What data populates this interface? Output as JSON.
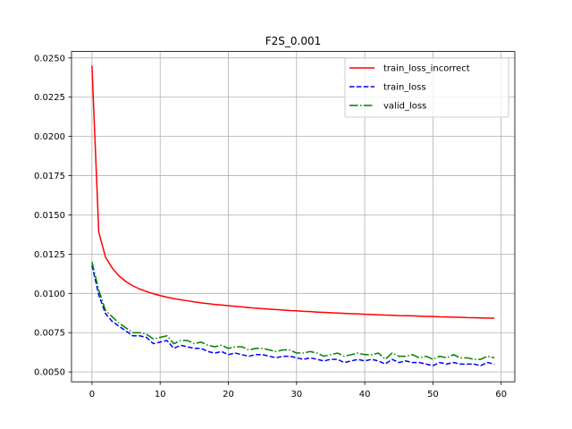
{
  "chart_data": {
    "type": "line",
    "title": "F2S_0.001",
    "xlabel": "",
    "ylabel": "",
    "xlim": [
      -3,
      62
    ],
    "ylim": [
      0.00437,
      0.02541
    ],
    "x_ticks": [
      0,
      10,
      20,
      30,
      40,
      50,
      60
    ],
    "y_ticks": [
      0.005,
      0.0075,
      0.01,
      0.0125,
      0.015,
      0.0175,
      0.02,
      0.0225,
      0.025
    ],
    "y_tick_labels": [
      "0.0050",
      "0.0075",
      "0.0100",
      "0.0125",
      "0.0150",
      "0.0175",
      "0.0200",
      "0.0225",
      "0.0250"
    ],
    "grid": true,
    "legend_position": "top-right",
    "x": [
      0,
      1,
      2,
      3,
      4,
      5,
      6,
      7,
      8,
      9,
      10,
      11,
      12,
      13,
      14,
      15,
      16,
      17,
      18,
      19,
      20,
      21,
      22,
      23,
      24,
      25,
      26,
      27,
      28,
      29,
      30,
      31,
      32,
      33,
      34,
      35,
      36,
      37,
      38,
      39,
      40,
      41,
      42,
      43,
      44,
      45,
      46,
      47,
      48,
      49,
      50,
      51,
      52,
      53,
      54,
      55,
      56,
      57,
      58,
      59
    ],
    "series": [
      {
        "name": "train_loss_incorrect",
        "color": "#ff0000",
        "dash": "solid",
        "values": [
          0.0245,
          0.0139,
          0.0123,
          0.0116,
          0.0111,
          0.01075,
          0.01048,
          0.01028,
          0.01012,
          0.00998,
          0.00986,
          0.00976,
          0.00967,
          0.0096,
          0.00953,
          0.00946,
          0.0094,
          0.00935,
          0.0093,
          0.00926,
          0.00922,
          0.00918,
          0.00914,
          0.0091,
          0.00906,
          0.00903,
          0.009,
          0.00897,
          0.00894,
          0.00891,
          0.00889,
          0.00886,
          0.00884,
          0.00881,
          0.00879,
          0.00877,
          0.00875,
          0.00873,
          0.00871,
          0.00869,
          0.00867,
          0.00866,
          0.00864,
          0.00862,
          0.00861,
          0.00859,
          0.00858,
          0.00857,
          0.00855,
          0.00854,
          0.00853,
          0.00851,
          0.0085,
          0.00849,
          0.00848,
          0.00846,
          0.00845,
          0.00844,
          0.00843,
          0.00842
        ]
      },
      {
        "name": "train_loss",
        "color": "#0000ff",
        "dash": "dashed",
        "values": [
          0.0118,
          0.0099,
          0.0087,
          0.0082,
          0.0079,
          0.0076,
          0.0073,
          0.0073,
          0.0072,
          0.0068,
          0.0069,
          0.007,
          0.0065,
          0.0067,
          0.0066,
          0.0065,
          0.0065,
          0.0063,
          0.0062,
          0.0063,
          0.0061,
          0.0062,
          0.0061,
          0.006,
          0.0061,
          0.0061,
          0.006,
          0.0059,
          0.006,
          0.006,
          0.0059,
          0.0058,
          0.0059,
          0.0058,
          0.0057,
          0.0058,
          0.0058,
          0.0056,
          0.0057,
          0.0058,
          0.0057,
          0.0058,
          0.0057,
          0.0055,
          0.0058,
          0.0056,
          0.0057,
          0.0056,
          0.0056,
          0.0055,
          0.0054,
          0.0056,
          0.0055,
          0.0056,
          0.0055,
          0.0055,
          0.0055,
          0.0054,
          0.0056,
          0.0055
        ]
      },
      {
        "name": "valid_loss",
        "color": "#008000",
        "dash": "dashdot",
        "values": [
          0.012,
          0.0102,
          0.0089,
          0.0085,
          0.0081,
          0.0078,
          0.0075,
          0.0075,
          0.0074,
          0.0071,
          0.0072,
          0.0073,
          0.0068,
          0.007,
          0.007,
          0.0068,
          0.0069,
          0.0067,
          0.0066,
          0.0067,
          0.0065,
          0.0066,
          0.0066,
          0.0064,
          0.0065,
          0.0065,
          0.0064,
          0.0063,
          0.0064,
          0.0064,
          0.0062,
          0.0062,
          0.0063,
          0.0062,
          0.006,
          0.0061,
          0.0062,
          0.006,
          0.0061,
          0.0062,
          0.0061,
          0.0061,
          0.0062,
          0.0058,
          0.0062,
          0.006,
          0.006,
          0.0061,
          0.0059,
          0.006,
          0.0058,
          0.006,
          0.0059,
          0.0061,
          0.0059,
          0.0059,
          0.0058,
          0.0058,
          0.006,
          0.0059
        ]
      }
    ]
  }
}
